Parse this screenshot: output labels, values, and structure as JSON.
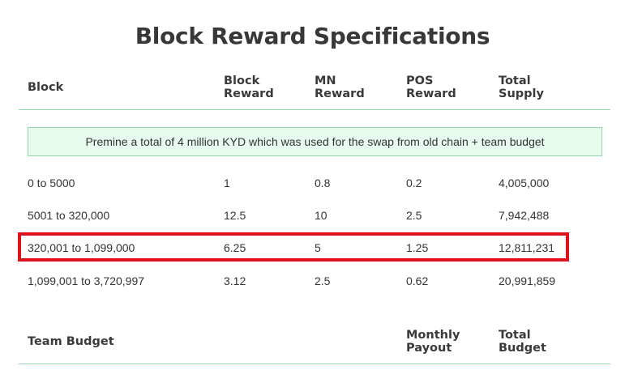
{
  "title": "Block Reward Specifications",
  "table": {
    "headers": {
      "block": "Block",
      "block_reward": [
        "Block",
        "Reward"
      ],
      "mn_reward": [
        "MN",
        "Reward"
      ],
      "pos_reward": [
        "POS",
        "Reward"
      ],
      "total_supply": [
        "Total",
        "Supply"
      ]
    },
    "premine": "Premine a total of 4 million KYD which was used for the swap from old chain + team budget",
    "rows": [
      {
        "block": "0 to 5000",
        "block_reward": "1",
        "mn": "0.8",
        "pos": "0.2",
        "supply": "4,005,000"
      },
      {
        "block": "5001 to 320,000",
        "block_reward": "12.5",
        "mn": "10",
        "pos": "2.5",
        "supply": "7,942,488"
      },
      {
        "block": "320,001 to 1,099,000",
        "block_reward": "6.25",
        "mn": "5",
        "pos": "1.25",
        "supply": "12,811,231"
      },
      {
        "block": "1,099,001 to 3,720,997",
        "block_reward": "3.12",
        "mn": "2.5",
        "pos": "0.62",
        "supply": "20,991,859"
      }
    ],
    "highlighted_row": 2
  },
  "team_table": {
    "headers": {
      "team_budget": "Team Budget",
      "monthly_payout": [
        "Monthly",
        "Payout"
      ],
      "total_budget": [
        "Total",
        "Budget"
      ]
    }
  },
  "colors": {
    "divider": "#8fd6a8",
    "premine_bg": "#e6faee",
    "highlight_border": "#e0101c"
  }
}
